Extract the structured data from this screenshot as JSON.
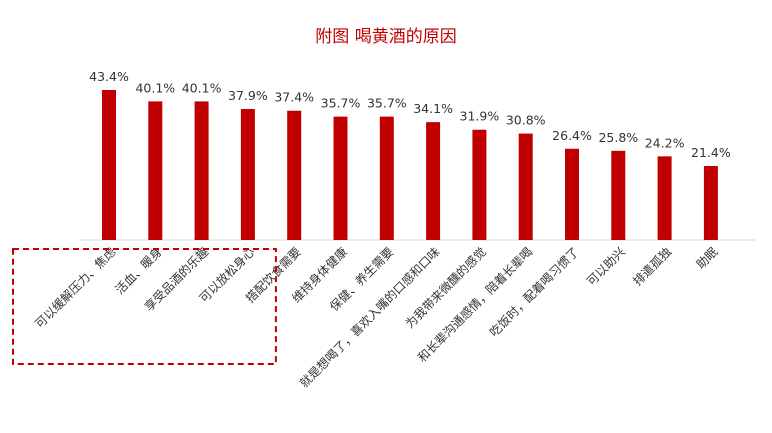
{
  "chart_data": {
    "type": "bar",
    "title": "附图  喝黄酒的原因",
    "xlabel": "",
    "ylabel": "",
    "ylim": [
      0,
      50
    ],
    "grid": false,
    "legend": "none",
    "categories": [
      "可以缓解压力、焦虑",
      "活血、暖身",
      "享受品酒的乐趣",
      "可以放松身心",
      "搭配饮食需要",
      "维持身体健康",
      "保健、养生需要",
      "就是想喝了，喜欢入嘴的口感和口味",
      "为我带来微醺的感觉",
      "和长辈沟通感情，陪着长辈喝",
      "吃饭时，配着喝习惯了",
      "可以助兴",
      "排遣孤独",
      "助眠"
    ],
    "values": [
      43.4,
      40.1,
      40.1,
      37.9,
      37.4,
      35.7,
      35.7,
      34.1,
      31.9,
      30.8,
      26.4,
      25.8,
      24.2,
      21.4
    ],
    "value_labels": [
      "43.4%",
      "40.1%",
      "40.1%",
      "37.9%",
      "37.4%",
      "35.7%",
      "35.7%",
      "34.1%",
      "31.9%",
      "30.8%",
      "26.4%",
      "25.8%",
      "24.2%",
      "21.4%"
    ],
    "highlight": {
      "categories": [
        "可以缓解压力、焦虑",
        "活血、暖身",
        "享受品酒的乐趣",
        "可以放松身心"
      ],
      "style": "dashed-box"
    },
    "colors": {
      "bar": "#c00000",
      "title": "#c00000",
      "highlight_box": "#c00000",
      "axis": "#d9d9d9"
    }
  }
}
